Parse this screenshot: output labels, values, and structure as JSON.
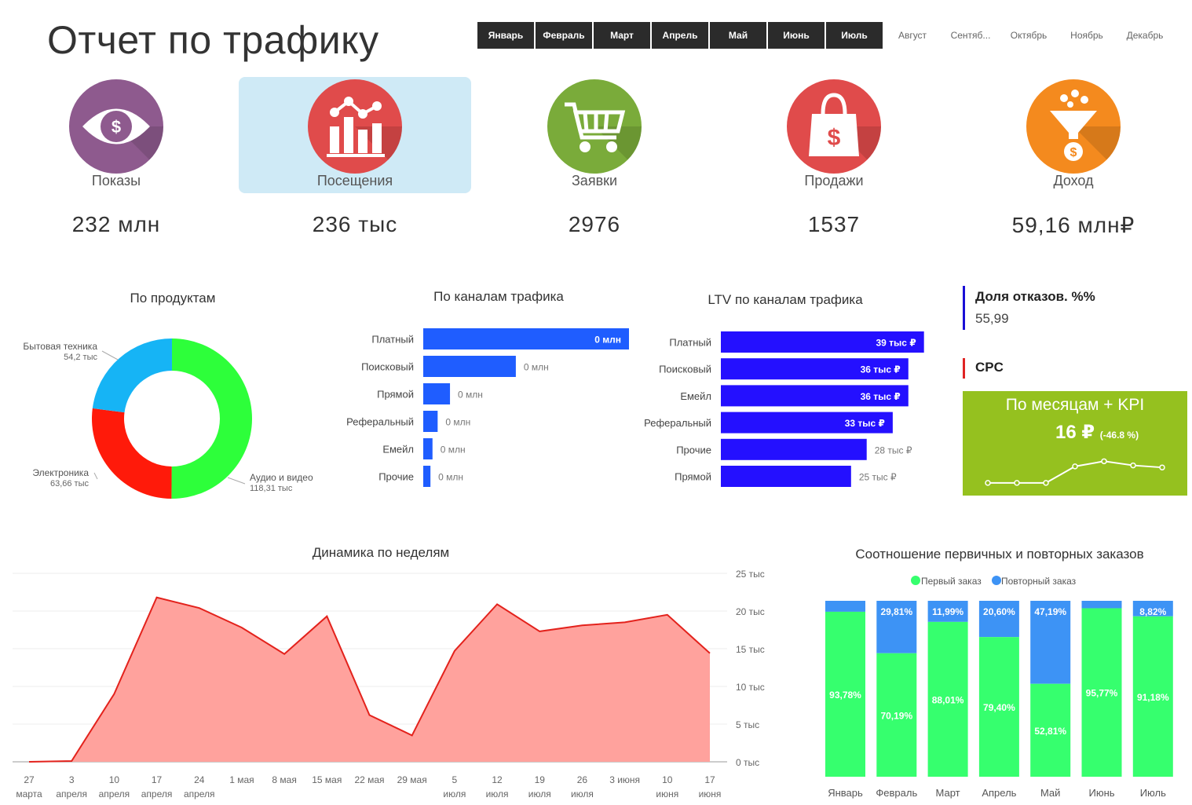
{
  "header": {
    "title": "Отчет по трафику"
  },
  "months": [
    {
      "label": "Январь",
      "active": true
    },
    {
      "label": "Февраль",
      "active": true
    },
    {
      "label": "Март",
      "active": true
    },
    {
      "label": "Апрель",
      "active": true
    },
    {
      "label": "Май",
      "active": true
    },
    {
      "label": "Июнь",
      "active": true
    },
    {
      "label": "Июль",
      "active": true
    },
    {
      "label": "Август",
      "active": false
    },
    {
      "label": "Сентяб...",
      "active": false
    },
    {
      "label": "Октябрь",
      "active": false
    },
    {
      "label": "Ноябрь",
      "active": false
    },
    {
      "label": "Декабрь",
      "active": false
    }
  ],
  "kpis": [
    {
      "label": "Показы",
      "value": "232 млн",
      "color": "#8e5a8e",
      "icon": "eye-dollar-icon"
    },
    {
      "label": "Посещения",
      "value": "236 тыс",
      "color": "#e04b4b",
      "icon": "bar-chart-icon",
      "selected": true
    },
    {
      "label": "Заявки",
      "value": "2976",
      "color": "#7aab3a",
      "icon": "shopping-cart-icon"
    },
    {
      "label": "Продажи",
      "value": "1537",
      "color": "#e04b4b",
      "icon": "shopping-bag-icon"
    },
    {
      "label": "Доход",
      "value": "59,16 млн₽",
      "color": "#f48a1e",
      "icon": "funnel-dollar-icon"
    }
  ],
  "side": {
    "bounce_title": "Доля отказов. %%",
    "bounce_value": "55,99",
    "cpc_title": "CPC",
    "kpi_title": "По месяцам + KPI",
    "kpi_value": "16 ₽",
    "kpi_delta": "(-46.8 %)",
    "colors": {
      "bounce": "#1a0fd6",
      "cpc": "#e02424",
      "kpi_bg": "#95c11f"
    }
  },
  "chart_data": [
    {
      "id": "products",
      "type": "pie",
      "title": "По продуктам",
      "slices": [
        {
          "label": "Аудио и видео",
          "value_label": "118,31 тыс",
          "value": 118.31,
          "color": "#2dff3a"
        },
        {
          "label": "Электроника",
          "value_label": "63,66 тыс",
          "value": 63.66,
          "color": "#ff1a0a"
        },
        {
          "label": "Бытовая техника",
          "value_label": "54,2 тыс",
          "value": 54.2,
          "color": "#16b4f5"
        }
      ]
    },
    {
      "id": "channels",
      "type": "bar",
      "title": "По каналам трафика",
      "categories": [
        "Платный",
        "Поисковый",
        "Прямой",
        "Реферальный",
        "Емейл",
        "Прочие"
      ],
      "values": [
        1.0,
        0.45,
        0.13,
        0.07,
        0.045,
        0.035
      ],
      "labels": [
        "0 млн",
        "0 млн",
        "0 млн",
        "0 млн",
        "0 млн",
        "0 млн"
      ],
      "color": "#1f5dff"
    },
    {
      "id": "ltv",
      "type": "bar",
      "title": "LTV по каналам трафика",
      "categories": [
        "Платный",
        "Поисковый",
        "Емейл",
        "Реферальный",
        "Прочие",
        "Прямой"
      ],
      "values": [
        39,
        36,
        36,
        33,
        28,
        25
      ],
      "labels": [
        "39 тыс ₽",
        "36 тыс ₽",
        "36 тыс ₽",
        "33 тыс ₽",
        "28 тыс ₽",
        "25 тыс ₽"
      ],
      "color": "#2410ff",
      "xlim": [
        0,
        39.5
      ]
    },
    {
      "id": "cpc",
      "type": "line",
      "values": [
        10,
        10,
        10,
        26,
        31,
        27,
        25
      ],
      "color": "#ffffff"
    },
    {
      "id": "weekly",
      "type": "area",
      "title": "Динамика по неделям",
      "x": [
        "27 марта",
        "3 апреля",
        "10 апреля",
        "17 апреля",
        "24 апреля",
        "1 мая",
        "8 мая",
        "15 мая",
        "22 мая",
        "29 мая",
        "5 июля",
        "12 июля",
        "19 июля",
        "26 июля",
        "3 июня",
        "10 июня",
        "17 июня"
      ],
      "values": [
        0,
        100,
        9000,
        21800,
        20400,
        17800,
        14300,
        19300,
        6200,
        3500,
        14700,
        20900,
        17300,
        18100,
        18500,
        19500,
        14400
      ],
      "ylim": [
        0,
        25000
      ],
      "y_ticks": [
        "0 тыс",
        "5 тыс",
        "10 тыс",
        "15 тыс",
        "20 тыс",
        "25 тыс"
      ],
      "line_color": "#e3221c",
      "fill_color": "#ffa29d"
    },
    {
      "id": "orders",
      "type": "bar",
      "stacked": true,
      "title": "Соотношение первичных и повторных заказов",
      "categories": [
        "Январь",
        "Февраль",
        "Март",
        "Апрель",
        "Май",
        "Июнь",
        "Июль"
      ],
      "series": [
        {
          "name": "Первый заказ",
          "values": [
            93.78,
            70.19,
            88.01,
            79.4,
            52.81,
            95.77,
            91.18
          ],
          "labels": [
            "93,78%",
            "70,19%",
            "88,01%",
            "79,40%",
            "52,81%",
            "95,77%",
            "91,18%"
          ],
          "color": "#36ff6e"
        },
        {
          "name": "Повторный заказ",
          "values": [
            6.22,
            29.81,
            11.99,
            20.6,
            47.19,
            4.23,
            8.82
          ],
          "labels": [
            "",
            "29,81%",
            "11,99%",
            "20,60%",
            "47,19%",
            "",
            "8,82%"
          ],
          "color": "#3d93f5"
        }
      ]
    }
  ]
}
